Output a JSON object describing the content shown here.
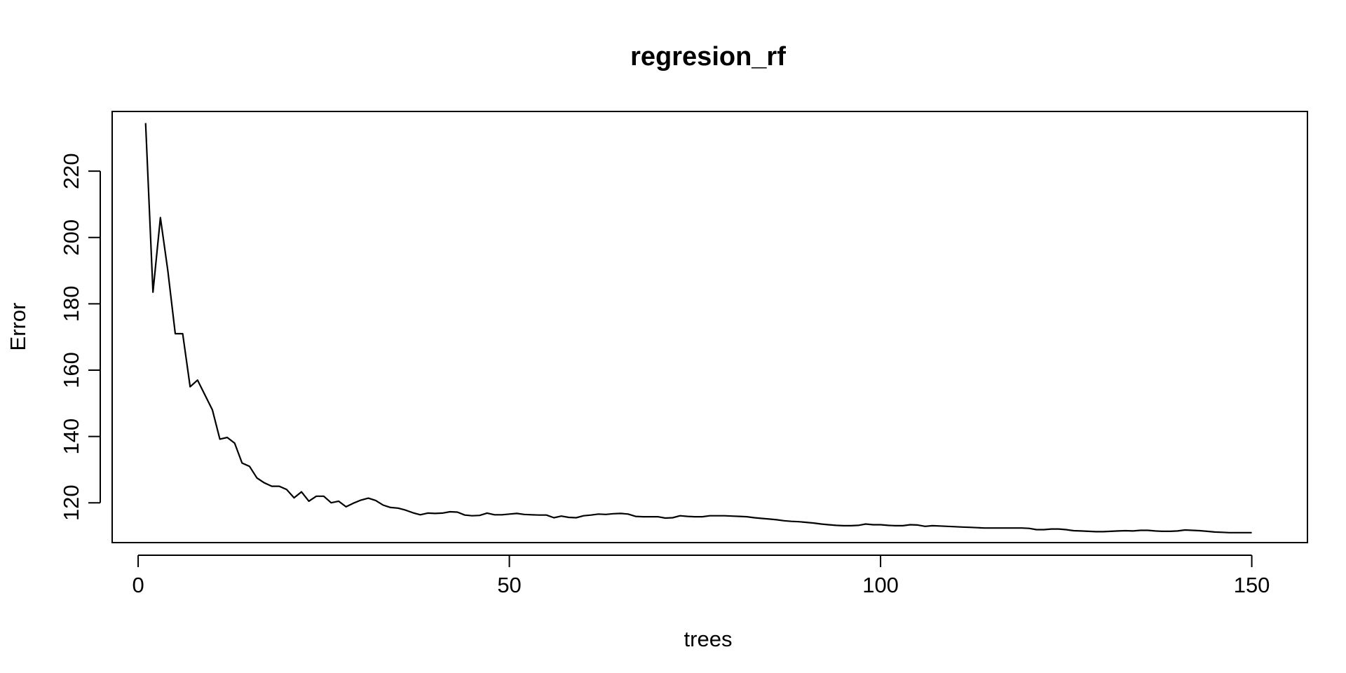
{
  "chart_data": {
    "type": "line",
    "title": "regresion_rf",
    "xlabel": "trees",
    "ylabel": "Error",
    "xlim": [
      -3.5,
      157.5
    ],
    "ylim": [
      108,
      238
    ],
    "x_ticks": [
      0,
      50,
      100,
      150
    ],
    "y_ticks": [
      120,
      140,
      160,
      180,
      200,
      220
    ],
    "grid": false,
    "line_color": "#000000",
    "series": [
      {
        "x": [
          1,
          2,
          3,
          4,
          5,
          6,
          7,
          8,
          9,
          10,
          11,
          12,
          13,
          14,
          15,
          16,
          17,
          18,
          19,
          20,
          21,
          22,
          23,
          24,
          25,
          26,
          27,
          28,
          29,
          30,
          31,
          32,
          33,
          34,
          35,
          36,
          37,
          38,
          39,
          40,
          41,
          42,
          43,
          44,
          45,
          46,
          47,
          48,
          49,
          50,
          51,
          52,
          53,
          54,
          55,
          56,
          57,
          58,
          59,
          60,
          61,
          62,
          63,
          64,
          65,
          66,
          67,
          68,
          69,
          70,
          71,
          72,
          73,
          74,
          75,
          76,
          77,
          78,
          79,
          80,
          81,
          82,
          83,
          84,
          85,
          86,
          87,
          88,
          89,
          90,
          91,
          92,
          93,
          94,
          95,
          96,
          97,
          98,
          99,
          100,
          101,
          102,
          103,
          104,
          105,
          106,
          107,
          108,
          109,
          110,
          111,
          112,
          113,
          114,
          115,
          116,
          117,
          118,
          119,
          120,
          121,
          122,
          123,
          124,
          125,
          126,
          127,
          128,
          129,
          130,
          131,
          132,
          133,
          134,
          135,
          136,
          137,
          138,
          139,
          140,
          141,
          142,
          143,
          144,
          145,
          146,
          147,
          148,
          149,
          150
        ],
        "y": [
          234.5,
          183.5,
          206,
          190,
          171,
          171,
          155,
          157,
          152.5,
          148,
          139.2,
          139.7,
          138,
          132,
          131,
          127.5,
          126,
          125,
          125,
          124,
          121.5,
          123.3,
          120.5,
          122,
          122,
          120,
          120.5,
          118.8,
          119.9,
          120.8,
          121.4,
          120.7,
          119.3,
          118.6,
          118.4,
          117.8,
          117,
          116.4,
          116.9,
          116.8,
          116.9,
          117.3,
          117.2,
          116.3,
          116.1,
          116.2,
          116.9,
          116.4,
          116.4,
          116.6,
          116.8,
          116.5,
          116.4,
          116.3,
          116.3,
          115.5,
          116,
          115.6,
          115.5,
          116.1,
          116.3,
          116.6,
          116.5,
          116.7,
          116.8,
          116.6,
          115.9,
          115.8,
          115.8,
          115.8,
          115.4,
          115.5,
          116.1,
          115.9,
          115.8,
          115.8,
          116.1,
          116.1,
          116.1,
          116,
          115.9,
          115.8,
          115.5,
          115.3,
          115.1,
          114.9,
          114.6,
          114.4,
          114.3,
          114.1,
          113.9,
          113.6,
          113.4,
          113.2,
          113.1,
          113.1,
          113.2,
          113.6,
          113.4,
          113.4,
          113.2,
          113.1,
          113.1,
          113.4,
          113.3,
          112.9,
          113.1,
          113,
          112.9,
          112.8,
          112.7,
          112.6,
          112.5,
          112.4,
          112.4,
          112.4,
          112.4,
          112.4,
          112.4,
          112.3,
          111.9,
          111.9,
          112.1,
          112.1,
          111.9,
          111.6,
          111.5,
          111.4,
          111.3,
          111.3,
          111.4,
          111.5,
          111.6,
          111.5,
          111.7,
          111.7,
          111.5,
          111.4,
          111.4,
          111.5,
          111.8,
          111.7,
          111.6,
          111.4,
          111.2,
          111.1,
          111,
          111,
          111,
          111
        ]
      }
    ]
  }
}
